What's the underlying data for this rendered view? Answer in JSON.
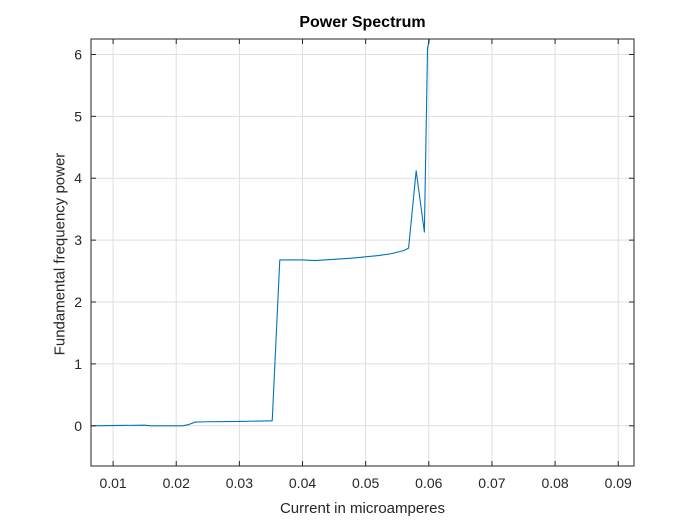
{
  "chart_data": {
    "type": "line",
    "title": "Power Spectrum",
    "xlabel": "Current in microamperes",
    "ylabel": "Fundamental frequency power",
    "xlim": [
      0.0065,
      0.0925
    ],
    "ylim": [
      -0.65,
      6.25
    ],
    "xticks": [
      0.01,
      0.02,
      0.03,
      0.04,
      0.05,
      0.06,
      0.07,
      0.08,
      0.09
    ],
    "xtick_labels": [
      "0.01",
      "0.02",
      "0.03",
      "0.04",
      "0.05",
      "0.06",
      "0.07",
      "0.08",
      "0.09"
    ],
    "yticks": [
      0,
      1,
      2,
      3,
      4,
      5,
      6
    ],
    "ytick_labels": [
      "0",
      "1",
      "2",
      "3",
      "4",
      "5",
      "6"
    ],
    "grid": true,
    "series": [
      {
        "color": "#0072BD",
        "x": [
          0.0065,
          0.015,
          0.016,
          0.021,
          0.022,
          0.023,
          0.025,
          0.03,
          0.035,
          0.0352,
          0.0364,
          0.04,
          0.042,
          0.045,
          0.048,
          0.05,
          0.052,
          0.054,
          0.056,
          0.0568,
          0.058,
          0.0593,
          0.0598,
          0.0601
        ],
        "y": [
          0.0,
          0.01,
          0.0,
          0.0,
          0.02,
          0.06,
          0.065,
          0.07,
          0.08,
          0.08,
          2.68,
          2.68,
          2.67,
          2.69,
          2.71,
          2.73,
          2.75,
          2.78,
          2.83,
          2.87,
          4.12,
          3.13,
          6.1,
          6.25
        ]
      }
    ]
  }
}
